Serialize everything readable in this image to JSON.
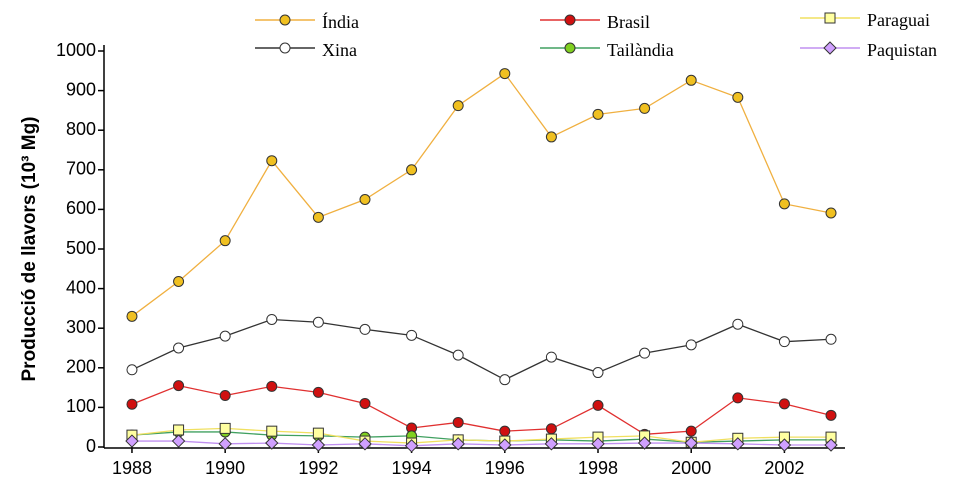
{
  "chart_data": {
    "type": "line",
    "y_label": "Producció de llavors (10³ Mg)",
    "x": [
      1988,
      1989,
      1990,
      1991,
      1992,
      1993,
      1994,
      1995,
      1996,
      1997,
      1998,
      1999,
      2000,
      2001,
      2002,
      2003
    ],
    "xlim": [
      1987.4,
      2003.3
    ],
    "xticks": [
      1988,
      1990,
      1992,
      1994,
      1996,
      1998,
      2000,
      2002
    ],
    "ylim": [
      0,
      1000
    ],
    "yticks": [
      0,
      100,
      200,
      300,
      400,
      500,
      600,
      700,
      800,
      900,
      1000
    ],
    "series": [
      {
        "name": "Índia",
        "color": "#f0b040",
        "marker": "circle",
        "marker_color": "#f0c020",
        "values": [
          330,
          418,
          521,
          723,
          580,
          625,
          700,
          862,
          943,
          783,
          840,
          855,
          926,
          883,
          614,
          591
        ]
      },
      {
        "name": "Xina",
        "color": "#333333",
        "marker": "circle",
        "marker_color": "#ffffff",
        "values": [
          195,
          250,
          280,
          322,
          315,
          297,
          282,
          232,
          170,
          227,
          188,
          237,
          258,
          310,
          266,
          272
        ]
      },
      {
        "name": "Brasil",
        "color": "#e03030",
        "marker": "circle",
        "marker_color": "#d01010",
        "values": [
          108,
          155,
          130,
          153,
          138,
          110,
          48,
          62,
          40,
          46,
          105,
          32,
          40,
          124,
          109,
          80
        ]
      },
      {
        "name": "Tailàndia",
        "color": "#40a060",
        "marker": "circle",
        "marker_color": "#80d020",
        "values": [
          30,
          38,
          38,
          30,
          28,
          25,
          28,
          18,
          15,
          18,
          15,
          20,
          12,
          15,
          18,
          18
        ]
      },
      {
        "name": "Paraguai",
        "color": "#f0e060",
        "marker": "square",
        "marker_color": "#ffffa0",
        "values": [
          30,
          43,
          47,
          40,
          35,
          15,
          10,
          18,
          15,
          20,
          25,
          28,
          12,
          22,
          25,
          25
        ]
      },
      {
        "name": "Paquistan",
        "color": "#c090f0",
        "marker": "diamond",
        "marker_color": "#d0a0ff",
        "values": [
          15,
          15,
          8,
          10,
          5,
          8,
          3,
          8,
          5,
          8,
          8,
          10,
          10,
          8,
          5,
          5
        ]
      }
    ]
  }
}
